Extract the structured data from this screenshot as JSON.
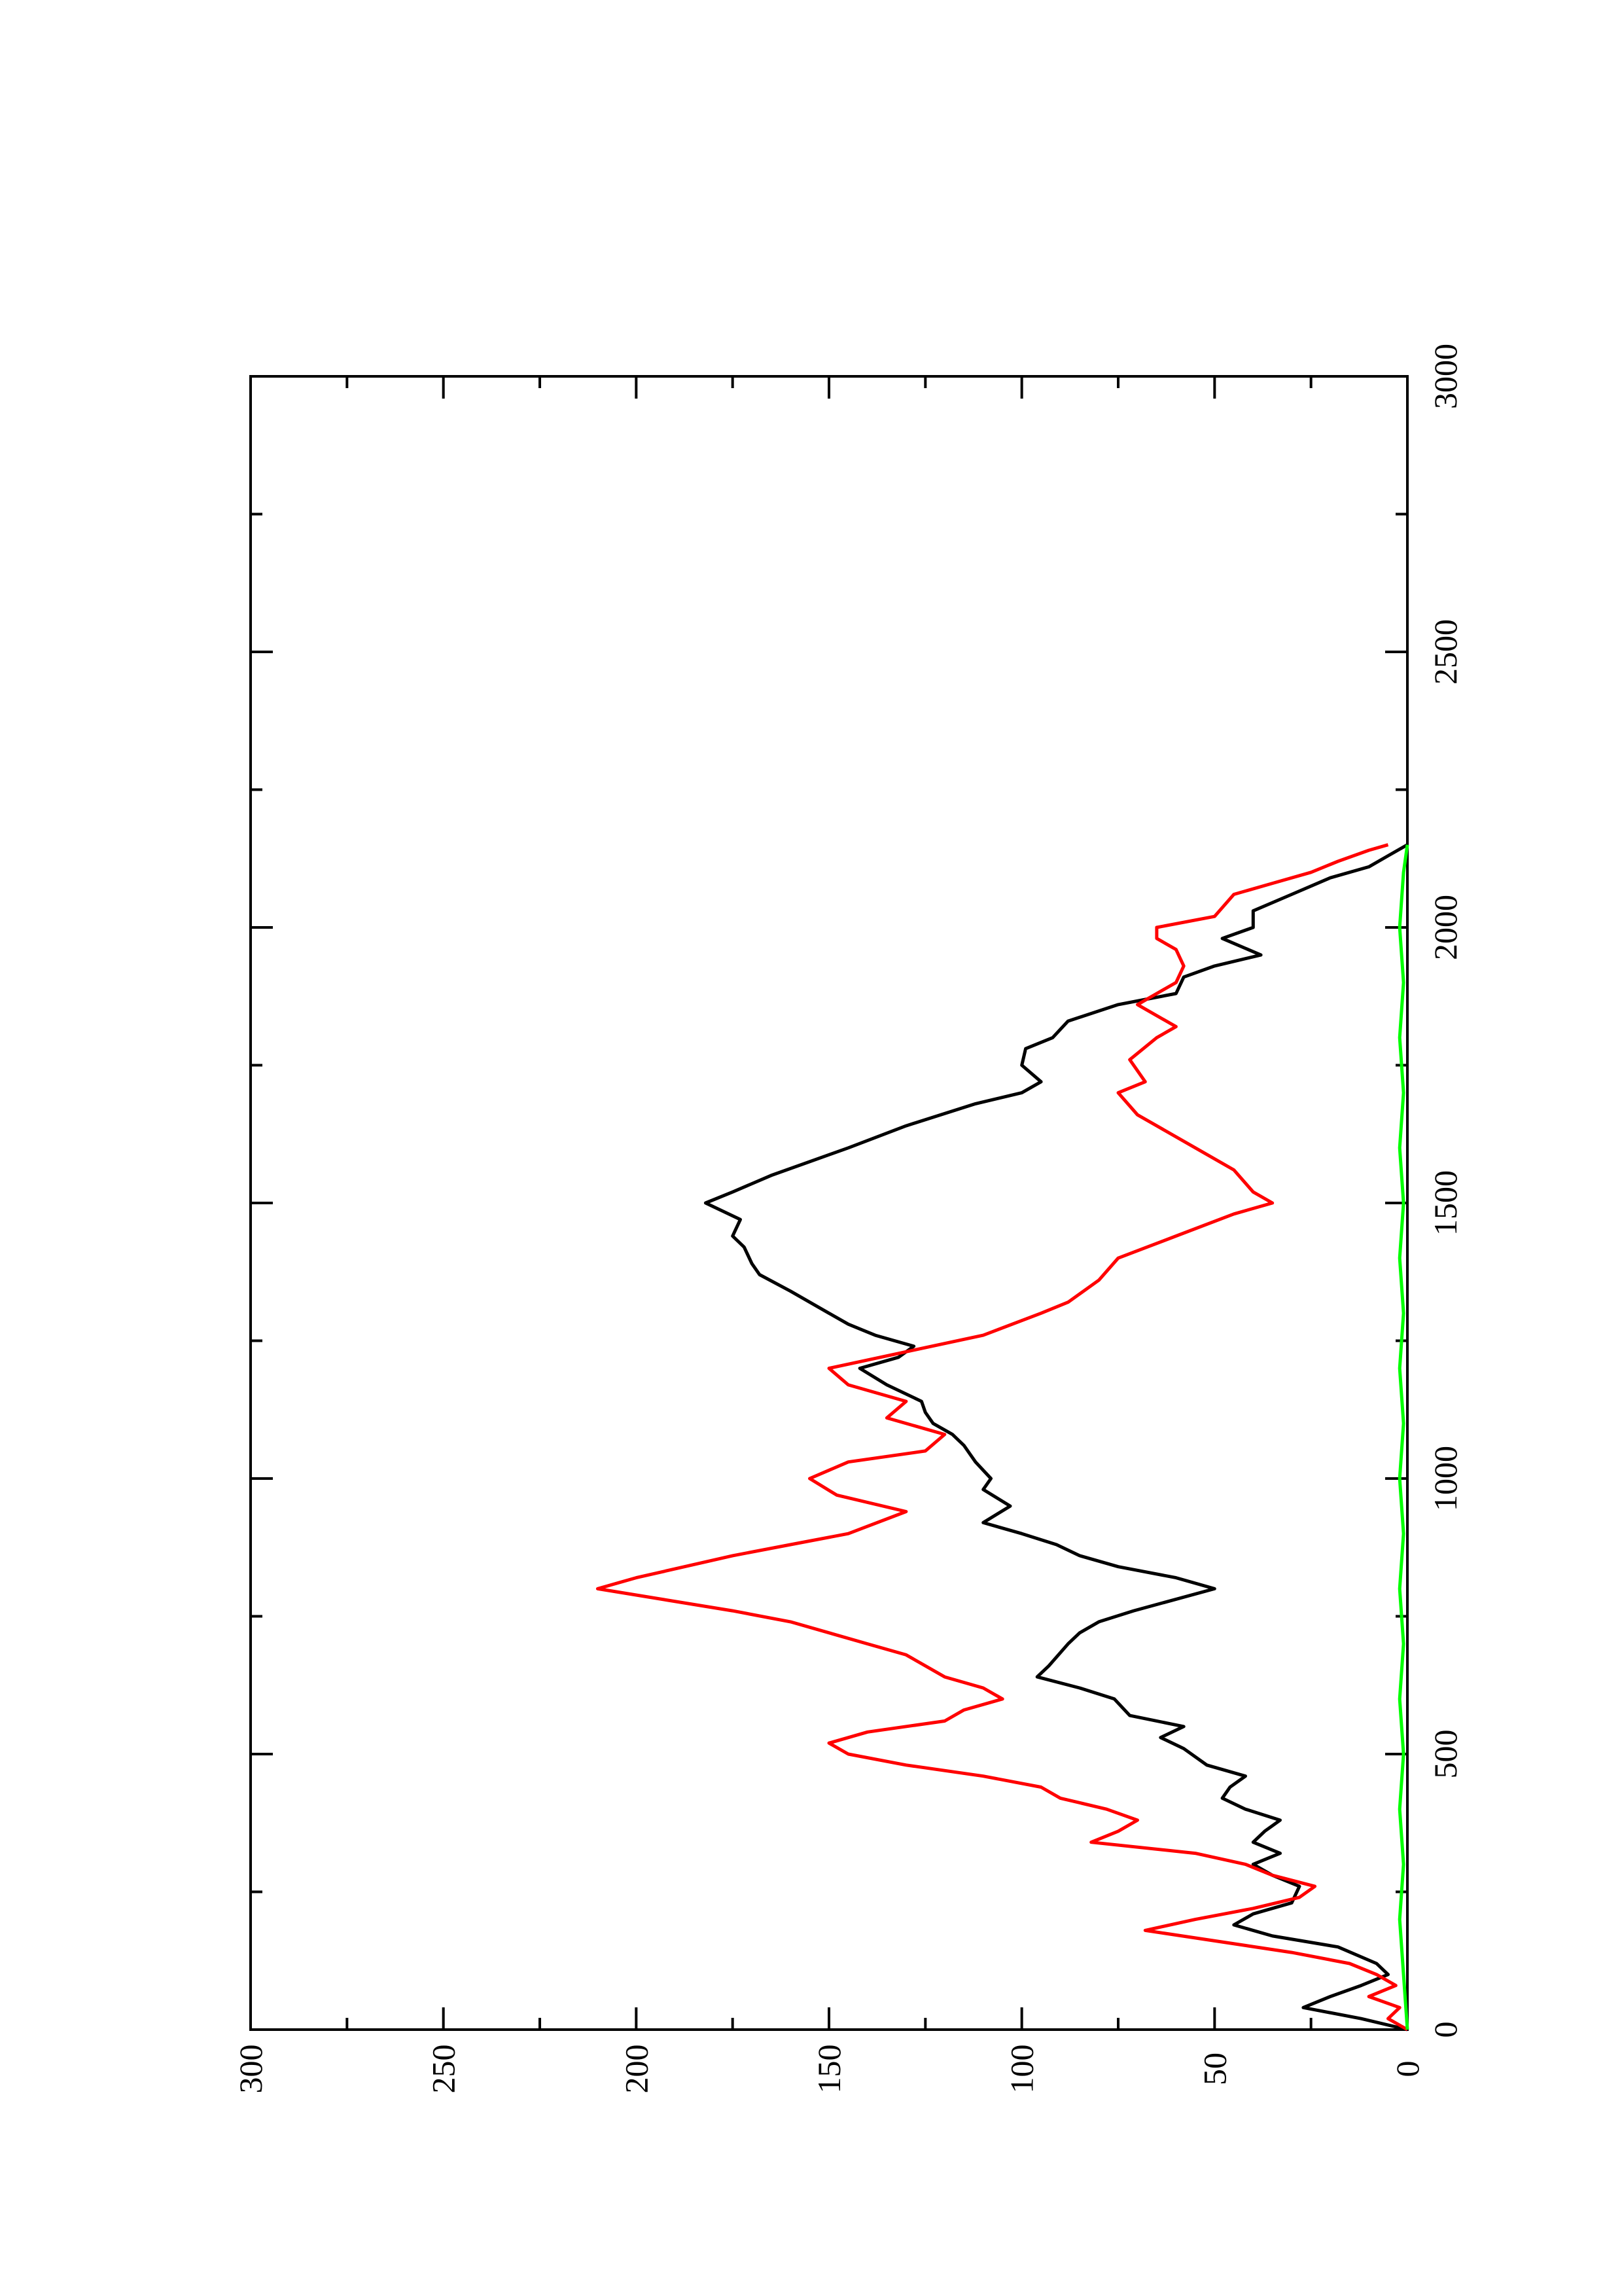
{
  "chart_data": {
    "type": "line",
    "title": "",
    "xlabel": "",
    "ylabel": "",
    "orientation": "rotated 90° counter-clockwise (x axis runs bottom-to-top along the right edge, y axis runs right-to-left)",
    "xlim": [
      0,
      3000
    ],
    "ylim": [
      0,
      300
    ],
    "x_ticks": [
      0,
      500,
      1000,
      1500,
      2000,
      2500,
      3000
    ],
    "x_tick_labels": [
      "0",
      "500",
      "1000",
      "1500",
      "2000",
      "2500",
      "3000"
    ],
    "y_ticks": [
      0,
      50,
      100,
      150,
      200,
      250,
      300
    ],
    "y_tick_labels": [
      "0",
      "50",
      "100",
      "150",
      "200",
      "250",
      "300"
    ],
    "grid": false,
    "legend": "none",
    "series": [
      {
        "color": "#000000",
        "points": [
          [
            0,
            0
          ],
          [
            20,
            12
          ],
          [
            40,
            27
          ],
          [
            60,
            20
          ],
          [
            80,
            12
          ],
          [
            100,
            5
          ],
          [
            120,
            8
          ],
          [
            150,
            18
          ],
          [
            170,
            35
          ],
          [
            190,
            45
          ],
          [
            210,
            40
          ],
          [
            230,
            30
          ],
          [
            260,
            28
          ],
          [
            280,
            35
          ],
          [
            300,
            40
          ],
          [
            320,
            33
          ],
          [
            340,
            40
          ],
          [
            360,
            37
          ],
          [
            380,
            33
          ],
          [
            400,
            42
          ],
          [
            420,
            48
          ],
          [
            440,
            46
          ],
          [
            460,
            42
          ],
          [
            480,
            52
          ],
          [
            510,
            58
          ],
          [
            530,
            64
          ],
          [
            550,
            58
          ],
          [
            570,
            72
          ],
          [
            600,
            76
          ],
          [
            620,
            85
          ],
          [
            640,
            96
          ],
          [
            660,
            93
          ],
          [
            700,
            88
          ],
          [
            720,
            85
          ],
          [
            740,
            80
          ],
          [
            760,
            71
          ],
          [
            800,
            50
          ],
          [
            820,
            60
          ],
          [
            840,
            75
          ],
          [
            860,
            85
          ],
          [
            880,
            91
          ],
          [
            900,
            100
          ],
          [
            920,
            110
          ],
          [
            950,
            103
          ],
          [
            980,
            110
          ],
          [
            1000,
            108
          ],
          [
            1030,
            112
          ],
          [
            1060,
            115
          ],
          [
            1080,
            118
          ],
          [
            1100,
            123
          ],
          [
            1120,
            125
          ],
          [
            1140,
            126
          ],
          [
            1170,
            135
          ],
          [
            1200,
            142
          ],
          [
            1220,
            132
          ],
          [
            1240,
            128
          ],
          [
            1260,
            138
          ],
          [
            1280,
            145
          ],
          [
            1300,
            150
          ],
          [
            1340,
            160
          ],
          [
            1370,
            168
          ],
          [
            1390,
            170
          ],
          [
            1420,
            172
          ],
          [
            1440,
            175
          ],
          [
            1470,
            173
          ],
          [
            1500,
            182
          ],
          [
            1520,
            175
          ],
          [
            1550,
            165
          ],
          [
            1600,
            145
          ],
          [
            1640,
            130
          ],
          [
            1680,
            112
          ],
          [
            1700,
            100
          ],
          [
            1720,
            95
          ],
          [
            1750,
            100
          ],
          [
            1780,
            99
          ],
          [
            1800,
            92
          ],
          [
            1830,
            88
          ],
          [
            1860,
            75
          ],
          [
            1880,
            60
          ],
          [
            1910,
            58
          ],
          [
            1930,
            50
          ],
          [
            1950,
            38
          ],
          [
            1980,
            48
          ],
          [
            2000,
            40
          ],
          [
            2030,
            40
          ],
          [
            2060,
            30
          ],
          [
            2090,
            20
          ],
          [
            2110,
            10
          ],
          [
            2130,
            5
          ],
          [
            2150,
            0
          ]
        ]
      },
      {
        "color": "#ff0000",
        "points": [
          [
            0,
            0
          ],
          [
            20,
            5
          ],
          [
            40,
            2
          ],
          [
            60,
            10
          ],
          [
            80,
            3
          ],
          [
            100,
            8
          ],
          [
            120,
            15
          ],
          [
            140,
            30
          ],
          [
            180,
            68
          ],
          [
            200,
            55
          ],
          [
            220,
            40
          ],
          [
            240,
            28
          ],
          [
            260,
            24
          ],
          [
            280,
            35
          ],
          [
            300,
            42
          ],
          [
            320,
            55
          ],
          [
            340,
            82
          ],
          [
            360,
            75
          ],
          [
            380,
            70
          ],
          [
            400,
            78
          ],
          [
            420,
            90
          ],
          [
            440,
            95
          ],
          [
            460,
            110
          ],
          [
            480,
            130
          ],
          [
            500,
            145
          ],
          [
            520,
            150
          ],
          [
            540,
            140
          ],
          [
            560,
            120
          ],
          [
            580,
            115
          ],
          [
            600,
            105
          ],
          [
            620,
            110
          ],
          [
            640,
            120
          ],
          [
            680,
            130
          ],
          [
            700,
            140
          ],
          [
            740,
            160
          ],
          [
            760,
            175
          ],
          [
            800,
            210
          ],
          [
            820,
            200
          ],
          [
            860,
            175
          ],
          [
            880,
            160
          ],
          [
            900,
            145
          ],
          [
            940,
            130
          ],
          [
            970,
            148
          ],
          [
            1000,
            155
          ],
          [
            1030,
            145
          ],
          [
            1050,
            125
          ],
          [
            1080,
            120
          ],
          [
            1110,
            135
          ],
          [
            1140,
            130
          ],
          [
            1170,
            145
          ],
          [
            1200,
            150
          ],
          [
            1230,
            130
          ],
          [
            1260,
            110
          ],
          [
            1300,
            95
          ],
          [
            1320,
            88
          ],
          [
            1360,
            80
          ],
          [
            1400,
            75
          ],
          [
            1440,
            60
          ],
          [
            1480,
            45
          ],
          [
            1500,
            35
          ],
          [
            1520,
            40
          ],
          [
            1560,
            45
          ],
          [
            1600,
            55
          ],
          [
            1640,
            65
          ],
          [
            1660,
            70
          ],
          [
            1700,
            75
          ],
          [
            1720,
            68
          ],
          [
            1760,
            72
          ],
          [
            1800,
            65
          ],
          [
            1820,
            60
          ],
          [
            1860,
            70
          ],
          [
            1880,
            65
          ],
          [
            1900,
            60
          ],
          [
            1930,
            58
          ],
          [
            1960,
            60
          ],
          [
            1980,
            65
          ],
          [
            2000,
            65
          ],
          [
            2020,
            50
          ],
          [
            2060,
            45
          ],
          [
            2080,
            35
          ],
          [
            2100,
            25
          ],
          [
            2120,
            18
          ],
          [
            2140,
            10
          ],
          [
            2150,
            5
          ]
        ]
      },
      {
        "color": "#00ff00",
        "points": [
          [
            0,
            0
          ],
          [
            100,
            1
          ],
          [
            200,
            2
          ],
          [
            300,
            1
          ],
          [
            400,
            2
          ],
          [
            500,
            1
          ],
          [
            600,
            2
          ],
          [
            700,
            1
          ],
          [
            800,
            2
          ],
          [
            900,
            1
          ],
          [
            1000,
            2
          ],
          [
            1100,
            1
          ],
          [
            1200,
            2
          ],
          [
            1300,
            1
          ],
          [
            1400,
            2
          ],
          [
            1500,
            1
          ],
          [
            1600,
            2
          ],
          [
            1700,
            1
          ],
          [
            1800,
            2
          ],
          [
            1900,
            1
          ],
          [
            2000,
            2
          ],
          [
            2100,
            1
          ],
          [
            2150,
            0
          ]
        ]
      }
    ]
  }
}
